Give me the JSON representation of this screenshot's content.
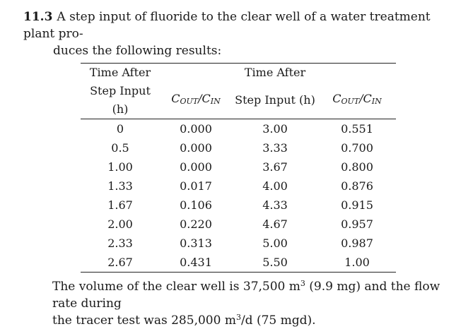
{
  "problem": {
    "number": "11.3",
    "line1": "A step input of fluoride to the clear well of a water treatment plant pro-",
    "line2": "duces the following results:"
  },
  "table": {
    "header_top": [
      "Time After",
      "",
      "Time After",
      ""
    ],
    "header_bottom": {
      "time_label": "Step Input (h)",
      "ratio_num": "C",
      "ratio_num_sub": "OUT",
      "ratio_den": "C",
      "ratio_den_sub": "IN"
    },
    "rows": [
      [
        "0",
        "0.000",
        "3.00",
        "0.551"
      ],
      [
        "0.5",
        "0.000",
        "3.33",
        "0.700"
      ],
      [
        "1.00",
        "0.000",
        "3.67",
        "0.800"
      ],
      [
        "1.33",
        "0.017",
        "4.00",
        "0.876"
      ],
      [
        "1.67",
        "0.106",
        "4.33",
        "0.915"
      ],
      [
        "2.00",
        "0.220",
        "4.67",
        "0.957"
      ],
      [
        "2.33",
        "0.313",
        "5.00",
        "0.987"
      ],
      [
        "2.67",
        "0.431",
        "5.50",
        "1.00"
      ]
    ]
  },
  "footer": {
    "line1_a": "The volume of the clear well is 37,500 m",
    "line1_sup": "3",
    "line1_b": " (9.9 mg) and the flow rate during",
    "line2_a": "the tracer test was 285,000 m",
    "line2_sup": "3",
    "line2_b": "/d (75 mgd)."
  }
}
